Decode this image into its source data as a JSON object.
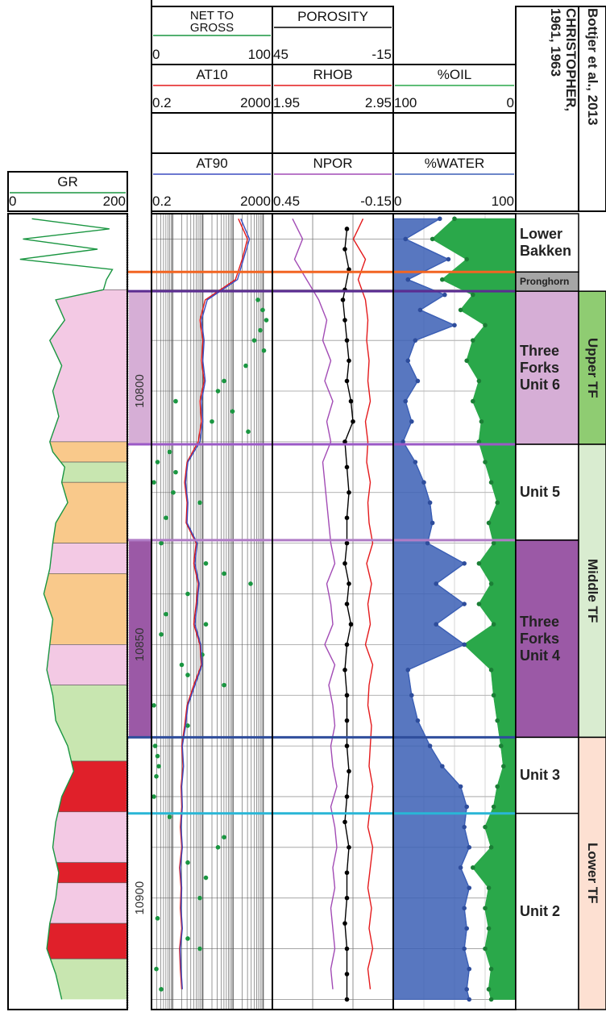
{
  "depth": {
    "lim": [
      10765,
      10922
    ],
    "ticks": [
      10800,
      10850,
      10900
    ],
    "minor_ticks": [
      10770,
      10780,
      10790,
      10810,
      10820,
      10830,
      10840,
      10860,
      10870,
      10880,
      10890,
      10910,
      10920
    ]
  },
  "tracks": [
    {
      "curves": [
        {
          "name": "GR",
          "color": "#1a9641",
          "xlim": [
            0,
            200
          ],
          "style": "line",
          "depth": [
            10766,
            10768,
            10770,
            10772,
            10774,
            10776,
            10778,
            10780,
            10782,
            10786,
            10790,
            10795,
            10800,
            10805,
            10810,
            10812,
            10815,
            10818,
            10822,
            10826,
            10830,
            10835,
            10840,
            10845,
            10850,
            10855,
            10860,
            10865,
            10870,
            10875,
            10880,
            10885,
            10890,
            10895,
            10900,
            10905,
            10910,
            10915,
            10920
          ],
          "values": [
            40,
            170,
            25,
            150,
            20,
            175,
            165,
            160,
            80,
            95,
            70,
            90,
            75,
            85,
            70,
            75,
            95,
            90,
            100,
            80,
            75,
            70,
            60,
            75,
            70,
            65,
            75,
            80,
            100,
            110,
            90,
            80,
            75,
            85,
            80,
            70,
            65,
            80,
            90
          ]
        }
      ],
      "lithology": [
        {
          "top": 10780,
          "base": 10810,
          "color": "#f3c9e4"
        },
        {
          "top": 10810,
          "base": 10814,
          "color": "#f9c98b"
        },
        {
          "top": 10814,
          "base": 10818,
          "color": "#c8e6b0"
        },
        {
          "top": 10818,
          "base": 10830,
          "color": "#f9c98b"
        },
        {
          "top": 10830,
          "base": 10836,
          "color": "#f3c9e4"
        },
        {
          "top": 10836,
          "base": 10850,
          "color": "#f9c98b"
        },
        {
          "top": 10850,
          "base": 10858,
          "color": "#f3c9e4"
        },
        {
          "top": 10858,
          "base": 10873,
          "color": "#c8e6b0"
        },
        {
          "top": 10873,
          "base": 10883,
          "color": "#e0202a"
        },
        {
          "top": 10883,
          "base": 10893,
          "color": "#f3c9e4"
        },
        {
          "top": 10893,
          "base": 10897,
          "color": "#e0202a"
        },
        {
          "top": 10897,
          "base": 10905,
          "color": "#f3c9e4"
        },
        {
          "top": 10905,
          "base": 10912,
          "color": "#e0202a"
        },
        {
          "top": 10912,
          "base": 10922,
          "color": "#c8e6b0"
        }
      ]
    },
    {
      "curves": [
        {
          "name": "NET TO GROSS",
          "color": "#1a9641",
          "xlim": [
            0,
            100
          ],
          "style": "dots",
          "depth": [
            10782,
            10784,
            10786,
            10788,
            10790,
            10792,
            10795,
            10798,
            10800,
            10802,
            10804,
            10806,
            10808,
            10812,
            10814,
            10816,
            10818,
            10820,
            10822,
            10825,
            10830,
            10834,
            10836,
            10838,
            10840,
            10844,
            10846,
            10848,
            10852,
            10854,
            10856,
            10858,
            10862,
            10866,
            10870,
            10872,
            10874,
            10876,
            10880,
            10884,
            10888,
            10890,
            10893,
            10896,
            10900,
            10904,
            10908,
            10910,
            10914,
            10918
          ],
          "values": [
            88,
            92,
            95,
            90,
            85,
            93,
            78,
            60,
            55,
            20,
            67,
            50,
            80,
            15,
            5,
            20,
            2,
            18,
            40,
            12,
            8,
            45,
            60,
            82,
            30,
            12,
            45,
            8,
            42,
            25,
            30,
            60,
            2,
            30,
            3,
            5,
            6,
            4,
            2,
            15,
            60,
            55,
            30,
            45,
            40,
            5,
            30,
            40,
            4,
            8
          ]
        },
        {
          "name": "AT10",
          "color": "#e41a1c",
          "xlim": [
            0.2,
            2000
          ],
          "log": true,
          "style": "line",
          "depth": [
            10766,
            10770,
            10774,
            10778,
            10782,
            10786,
            10790,
            10794,
            10798,
            10802,
            10806,
            10810,
            10814,
            10818,
            10822,
            10826,
            10830,
            10834,
            10838,
            10842,
            10846,
            10850,
            10854,
            10858,
            10862,
            10866,
            10870,
            10874,
            10878,
            10882,
            10886,
            10890,
            10894,
            10898,
            10902,
            10906,
            10910,
            10914,
            10918
          ],
          "values": [
            150,
            300,
            200,
            120,
            12,
            8,
            10,
            9,
            11,
            8,
            9,
            7,
            3,
            2.5,
            3,
            2.8,
            6,
            5,
            7,
            6,
            5,
            8,
            9,
            5,
            3,
            2.5,
            2,
            2.2,
            1.9,
            2,
            1.8,
            2,
            1.7,
            1.9,
            1.8,
            2,
            1.7,
            1.8,
            2
          ]
        },
        {
          "name": "AT90",
          "color": "#3b4cc0",
          "xlim": [
            0.2,
            2000
          ],
          "log": true,
          "style": "line",
          "depth": [
            10766,
            10770,
            10774,
            10778,
            10782,
            10786,
            10790,
            10794,
            10798,
            10802,
            10806,
            10810,
            10814,
            10818,
            10822,
            10826,
            10830,
            10834,
            10838,
            10842,
            10846,
            10850,
            10854,
            10858,
            10862,
            10866,
            10870,
            10874,
            10878,
            10882,
            10886,
            10890,
            10894,
            10898,
            10902,
            10906,
            10910,
            10914,
            10918
          ],
          "values": [
            180,
            350,
            220,
            140,
            14,
            9,
            11,
            10,
            12,
            9,
            10,
            8,
            3.2,
            2.7,
            3.2,
            3,
            6.5,
            5.5,
            7.5,
            6.5,
            5.5,
            8.5,
            9.5,
            5.5,
            3.2,
            2.7,
            2.1,
            2.3,
            2,
            2.1,
            1.9,
            2.1,
            1.8,
            2,
            1.9,
            2.1,
            1.8,
            1.9,
            2.1
          ]
        }
      ]
    },
    {
      "curves": [
        {
          "name": "POROSITY",
          "color": "#000000",
          "xlim": [
            45,
            -15
          ],
          "style": "line-dots",
          "depth": [
            10768,
            10772,
            10776,
            10780,
            10782,
            10786,
            10790,
            10794,
            10798,
            10802,
            10806,
            10810,
            10815,
            10820,
            10825,
            10830,
            10834,
            10838,
            10842,
            10846,
            10850,
            10855,
            10860,
            10865,
            10870,
            10875,
            10880,
            10885,
            10890,
            10895,
            10900,
            10905,
            10910,
            10915,
            10920
          ],
          "values": [
            8,
            9,
            7,
            9,
            10,
            9,
            8,
            7,
            8,
            6,
            5,
            9,
            8,
            7,
            8,
            8,
            9,
            7,
            8,
            6,
            8,
            9,
            8,
            8,
            8,
            7,
            8,
            9,
            7,
            8,
            8,
            9,
            8,
            8,
            8
          ]
        },
        {
          "name": "RHOB",
          "color": "#e41a1c",
          "xlim": [
            1.95,
            2.95
          ],
          "style": "line",
          "depth": [
            10766,
            10770,
            10774,
            10778,
            10782,
            10786,
            10790,
            10794,
            10798,
            10802,
            10806,
            10810,
            10814,
            10818,
            10822,
            10826,
            10830,
            10834,
            10838,
            10842,
            10846,
            10850,
            10854,
            10858,
            10862,
            10866,
            10870,
            10874,
            10878,
            10882,
            10886,
            10890,
            10894,
            10898,
            10902,
            10906,
            10910,
            10914,
            10918
          ],
          "values": [
            2.7,
            2.62,
            2.72,
            2.66,
            2.72,
            2.74,
            2.73,
            2.75,
            2.74,
            2.76,
            2.72,
            2.74,
            2.73,
            2.76,
            2.74,
            2.75,
            2.78,
            2.73,
            2.77,
            2.74,
            2.76,
            2.72,
            2.78,
            2.75,
            2.74,
            2.77,
            2.76,
            2.75,
            2.78,
            2.76,
            2.74,
            2.78,
            2.76,
            2.74,
            2.77,
            2.75,
            2.78,
            2.74,
            2.76
          ]
        },
        {
          "name": "NPOR",
          "color": "#a24bb5",
          "xlim": [
            0.45,
            -0.15
          ],
          "style": "line",
          "depth": [
            10766,
            10770,
            10774,
            10778,
            10782,
            10786,
            10790,
            10794,
            10798,
            10802,
            10806,
            10810,
            10814,
            10818,
            10822,
            10826,
            10830,
            10834,
            10838,
            10842,
            10846,
            10850,
            10854,
            10858,
            10862,
            10866,
            10870,
            10874,
            10878,
            10882,
            10886,
            10890,
            10894,
            10898,
            10902,
            10906,
            10910,
            10914,
            10918
          ],
          "values": [
            0.35,
            0.3,
            0.34,
            0.28,
            0.22,
            0.18,
            0.2,
            0.16,
            0.19,
            0.15,
            0.18,
            0.16,
            0.2,
            0.19,
            0.18,
            0.17,
            0.16,
            0.14,
            0.18,
            0.16,
            0.15,
            0.19,
            0.14,
            0.17,
            0.15,
            0.14,
            0.16,
            0.15,
            0.13,
            0.16,
            0.14,
            0.13,
            0.15,
            0.14,
            0.16,
            0.15,
            0.14,
            0.16,
            0.15
          ]
        }
      ]
    },
    {
      "curves": [
        {
          "name": "%OIL",
          "color": "#2aa84a",
          "xlim": [
            100,
            0
          ],
          "style": "fill-right",
          "depth": [
            10766,
            10770,
            10774,
            10778,
            10781,
            10784,
            10787,
            10790,
            10794,
            10798,
            10802,
            10806,
            10810,
            10814,
            10818,
            10822,
            10826,
            10830,
            10834,
            10838,
            10842,
            10846,
            10850,
            10855,
            10860,
            10865,
            10870,
            10874,
            10878,
            10882,
            10886,
            10890,
            10894,
            10898,
            10902,
            10906,
            10910,
            10914,
            10918,
            10920
          ],
          "values": [
            50,
            68,
            40,
            60,
            35,
            45,
            25,
            35,
            40,
            30,
            35,
            28,
            30,
            25,
            20,
            15,
            22,
            18,
            30,
            20,
            30,
            18,
            42,
            20,
            18,
            15,
            12,
            10,
            15,
            18,
            25,
            20,
            35,
            22,
            25,
            22,
            25,
            20,
            22,
            20
          ]
        },
        {
          "name": "%WATER",
          "color": "#3b5fb5",
          "xlim": [
            0,
            100
          ],
          "style": "fill-left",
          "depth": [
            10766,
            10770,
            10774,
            10778,
            10781,
            10784,
            10787,
            10790,
            10794,
            10798,
            10802,
            10806,
            10810,
            10814,
            10818,
            10822,
            10826,
            10830,
            10834,
            10838,
            10842,
            10846,
            10850,
            10855,
            10860,
            10865,
            10870,
            10874,
            10878,
            10882,
            10886,
            10890,
            10894,
            10898,
            10902,
            10906,
            10910,
            10914,
            10918,
            10920
          ],
          "values": [
            38,
            10,
            45,
            12,
            42,
            22,
            50,
            18,
            12,
            20,
            10,
            15,
            8,
            18,
            25,
            30,
            32,
            28,
            58,
            35,
            58,
            35,
            58,
            12,
            15,
            20,
            30,
            40,
            55,
            60,
            58,
            62,
            55,
            62,
            58,
            60,
            58,
            62,
            60,
            62
          ]
        }
      ]
    }
  ],
  "tops": [
    {
      "depth": 10776.5,
      "color": "#f26522"
    },
    {
      "depth": 10780.3,
      "color": "#5b2c91"
    },
    {
      "depth": 10810.5,
      "color": "#9b59c6"
    },
    {
      "depth": 10829.4,
      "color": "#b07cc6"
    },
    {
      "depth": 10868.3,
      "color": "#2e4d9c"
    },
    {
      "depth": 10883.3,
      "color": "#29b6d6"
    }
  ],
  "zones": [
    {
      "name": "Lower Bakken",
      "top": 10765,
      "base": 10776.5,
      "color": "#ffffff"
    },
    {
      "name": "Pronghorn",
      "top": 10776.5,
      "base": 10780.3,
      "color": "#a6a6a6"
    },
    {
      "name": "Three Forks Unit 6",
      "top": 10780.3,
      "base": 10810.5,
      "color": "#d6aed6",
      "band_color": "#d6aed6"
    },
    {
      "name": "Unit 5",
      "top": 10810.5,
      "base": 10829.4,
      "color": "#ffffff"
    },
    {
      "name": "Three Forks Unit 4",
      "top": 10829.4,
      "base": 10868.3,
      "color": "#9b59a6",
      "band_color": "#9b59a6"
    },
    {
      "name": "Unit 3",
      "top": 10868.3,
      "base": 10883.3,
      "color": "#ffffff"
    },
    {
      "name": "Unit 2",
      "top": 10883.3,
      "base": 10922,
      "color": "#ffffff"
    }
  ],
  "groups": [
    {
      "name": "Upper TF",
      "top": 10780.3,
      "base": 10810.5,
      "color": "#8fcc72"
    },
    {
      "name": "Middle TF",
      "top": 10810.5,
      "base": 10868.3,
      "color": "#d9ecd0"
    },
    {
      "name": "Lower TF",
      "top": 10868.3,
      "base": 10922,
      "color": "#fde0d2"
    }
  ],
  "headers": {
    "christopher": "CHRISTOPHER, 1961, 1963",
    "bottjer": "Bottjer et al., 2013"
  }
}
